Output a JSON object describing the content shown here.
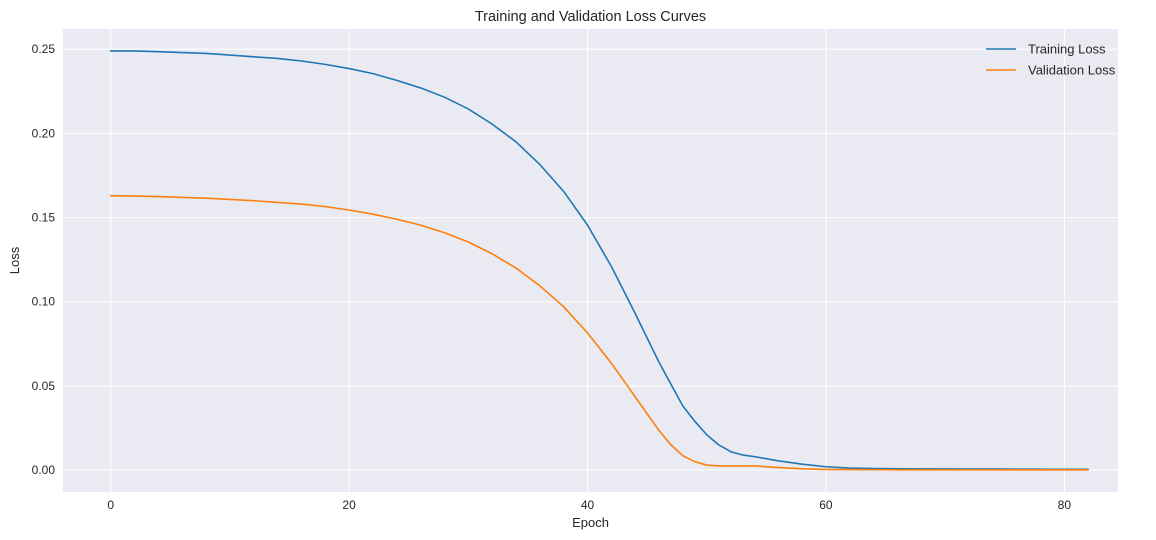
{
  "chart_data": {
    "type": "line",
    "title": "Training and Validation Loss Curves",
    "xlabel": "Epoch",
    "ylabel": "Loss",
    "xlim": [
      -4,
      84.5
    ],
    "ylim": [
      -0.013,
      0.262
    ],
    "xticks": [
      0,
      20,
      40,
      60,
      80
    ],
    "xtick_labels": [
      "0",
      "20",
      "40",
      "60",
      "80"
    ],
    "yticks": [
      0.0,
      0.05,
      0.1,
      0.15,
      0.2,
      0.25
    ],
    "ytick_labels": [
      "0.00",
      "0.05",
      "0.10",
      "0.15",
      "0.20",
      "0.25"
    ],
    "grid": true,
    "legend_position": "top-right",
    "series": [
      {
        "name": "Training Loss",
        "color": "#1f77b4",
        "x": [
          0,
          2,
          4,
          6,
          8,
          10,
          12,
          14,
          16,
          18,
          20,
          22,
          24,
          26,
          28,
          30,
          32,
          34,
          36,
          38,
          40,
          42,
          44,
          46,
          48,
          49,
          50,
          51,
          52,
          53,
          54,
          56,
          58,
          60,
          62,
          64,
          66,
          70,
          75,
          80,
          82
        ],
        "values": [
          0.249,
          0.249,
          0.2485,
          0.248,
          0.2475,
          0.2465,
          0.2455,
          0.2445,
          0.243,
          0.241,
          0.2385,
          0.2355,
          0.2315,
          0.227,
          0.2215,
          0.2145,
          0.2055,
          0.195,
          0.1815,
          0.1655,
          0.1455,
          0.121,
          0.093,
          0.064,
          0.038,
          0.029,
          0.021,
          0.015,
          0.011,
          0.009,
          0.008,
          0.0055,
          0.0035,
          0.002,
          0.0012,
          0.0009,
          0.0008,
          0.0007,
          0.0006,
          0.0005,
          0.0005
        ]
      },
      {
        "name": "Validation Loss",
        "color": "#ff7f0e",
        "x": [
          0,
          4,
          8,
          12,
          16,
          18,
          20,
          22,
          24,
          26,
          28,
          30,
          32,
          34,
          36,
          38,
          40,
          42,
          44,
          46,
          47,
          48,
          49,
          50,
          51,
          52,
          54,
          56,
          58,
          60,
          62,
          66,
          70,
          75,
          80,
          82
        ],
        "values": [
          0.163,
          0.1625,
          0.1615,
          0.16,
          0.158,
          0.1565,
          0.1545,
          0.152,
          0.149,
          0.1455,
          0.141,
          0.1355,
          0.1285,
          0.12,
          0.1095,
          0.097,
          0.0815,
          0.0635,
          0.0435,
          0.0235,
          0.015,
          0.0085,
          0.005,
          0.003,
          0.0025,
          0.0025,
          0.0025,
          0.0015,
          0.0008,
          0.0004,
          0.0003,
          0.0002,
          0.0002,
          0.0002,
          0.0002,
          0.0002
        ]
      }
    ]
  }
}
